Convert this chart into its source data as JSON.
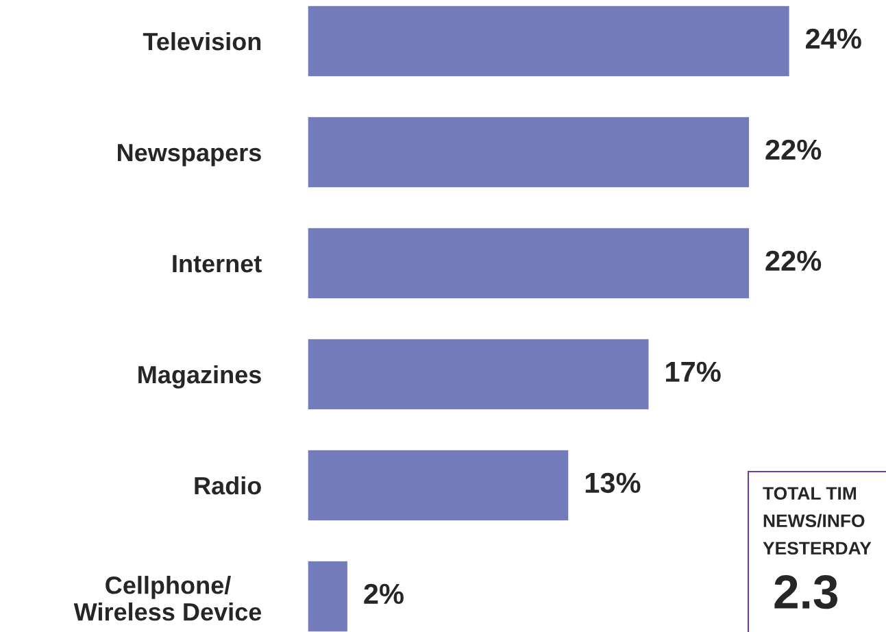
{
  "chart_data": {
    "type": "bar",
    "orientation": "horizontal",
    "categories": [
      "Television",
      "Newspapers",
      "Internet",
      "Magazines",
      "Radio",
      "Cellphone/\nWireless Device"
    ],
    "values": [
      24,
      22,
      22,
      17,
      13,
      2
    ],
    "value_labels": [
      "24%",
      "22%",
      "22%",
      "17%",
      "13%",
      "2%"
    ],
    "color": "#747bbb",
    "tick_labels": "y",
    "annotations": [
      "TOTAL TIM",
      "NEWS/INFO",
      "YESTERDAY",
      "2.3"
    ]
  }
}
